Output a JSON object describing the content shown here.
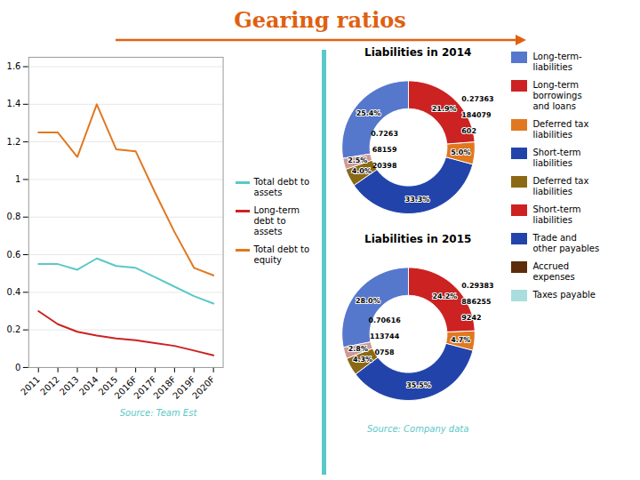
{
  "title": "Gearing ratios",
  "chart_data": [
    {
      "type": "line",
      "categories": [
        "2011",
        "2012",
        "2013",
        "2014",
        "2015",
        "2016F",
        "2017F",
        "2018F",
        "2019F",
        "2020F"
      ],
      "series": [
        {
          "name": "Total debt to\nassets",
          "color": "#5BC8C8",
          "values": [
            0.55,
            0.55,
            0.52,
            0.58,
            0.54,
            0.53,
            0.48,
            0.43,
            0.38,
            0.34
          ]
        },
        {
          "name": "Long-term\ndebt to\nassets",
          "color": "#CC2222",
          "values": [
            0.3,
            0.23,
            0.19,
            0.17,
            0.155,
            0.145,
            0.13,
            0.115,
            0.09,
            0.065
          ]
        },
        {
          "name": "Total debt to\nequity",
          "color": "#E07820",
          "values": [
            1.25,
            1.25,
            1.12,
            1.4,
            1.16,
            1.15,
            0.93,
            0.72,
            0.53,
            0.49
          ]
        }
      ],
      "ylim": [
        0,
        1.65
      ],
      "yticks": [
        0,
        0.2,
        0.4,
        0.6,
        0.8,
        1,
        1.2,
        1.4,
        1.6
      ],
      "grid": true,
      "legend": "right",
      "annotations": [
        "Source: Team Est"
      ]
    },
    {
      "type": "pie",
      "title": "Liabilities in 2014",
      "values": [
        21.9,
        5.0,
        33.3,
        4.0,
        2.5,
        25.4
      ],
      "value_labels": [
        "21.9%",
        "5.0%",
        "33.3%",
        "4.0%",
        "2.5%",
        "25.4%"
      ],
      "colors": [
        "#CC2222",
        "#E07820",
        "#2244AA",
        "#8B6914",
        "#CC9999",
        "#5577CC"
      ],
      "data_labels": true,
      "inner_annotations": [
        "0.7263",
        "68159",
        "20398"
      ],
      "outer_annotations": [
        "0.27363",
        "184079",
        "602"
      ]
    },
    {
      "type": "pie",
      "title": "Liabilities in 2015",
      "values": [
        24.2,
        4.7,
        35.5,
        4.3,
        2.8,
        28.0
      ],
      "value_labels": [
        "24.2%",
        "4.7%",
        "35.5%",
        "4.3%",
        "2.8%",
        "28.0%"
      ],
      "colors": [
        "#CC2222",
        "#E07820",
        "#2244AA",
        "#8B6914",
        "#CC9999",
        "#5577CC"
      ],
      "data_labels": true,
      "inner_annotations": [
        "0.70616",
        "113744",
        "0758"
      ],
      "outer_annotations": [
        "0.29383",
        "886255",
        "9242"
      ],
      "annotations": [
        "Source: Company data"
      ]
    }
  ],
  "legend_entries": [
    {
      "name": "Long-term-\nliabilities",
      "color": "#5577CC"
    },
    {
      "name": "Long-term\nborrowings\nand loans",
      "color": "#CC2222"
    },
    {
      "name": "Deferred tax\nliabilities",
      "color": "#E07820"
    },
    {
      "name": "Short-term\nliabilities",
      "color": "#2244AA"
    },
    {
      "name": "Deferred tax\nliabilities",
      "color": "#8B6914"
    },
    {
      "name": "Short-term\nliabilities",
      "color": "#CC2222"
    },
    {
      "name": "Trade and\nother payables",
      "color": "#2244AA"
    },
    {
      "name": "Accrued\nexpenses",
      "color": "#5B2D0A"
    },
    {
      "name": "Taxes payable",
      "color": "#AADDDD"
    }
  ]
}
